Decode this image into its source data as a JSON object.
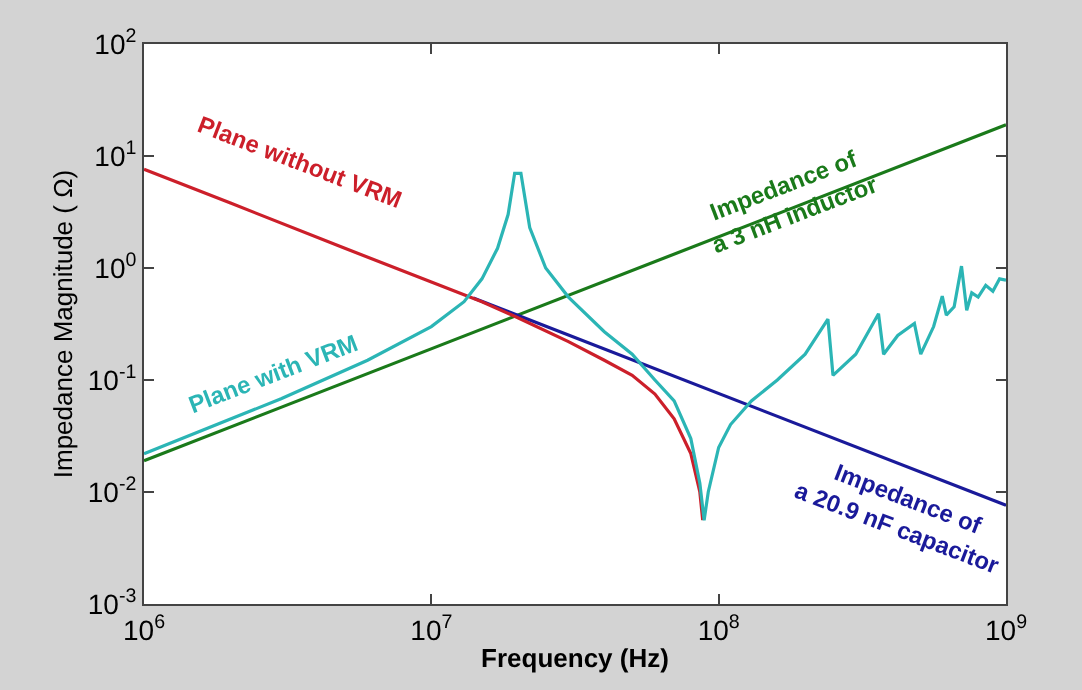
{
  "chart_data": {
    "type": "line",
    "xlabel": "Frequency (Hz)",
    "ylabel": "Impedance Magnitude ( Ω)",
    "log": "xy",
    "legend": false,
    "line_style": "solid",
    "marker": "none",
    "xlim": [
      1000000,
      1000000000
    ],
    "ylim": [
      0.001,
      100
    ],
    "xticks": [
      {
        "value": 1000000,
        "label": "10$^{6}$"
      },
      {
        "value": 10000000,
        "label": "10$^{7}$"
      },
      {
        "value": 100000000,
        "label": "10$^{8}$"
      },
      {
        "value": 1000000000,
        "label": "10$^{9}$"
      }
    ],
    "yticks": [
      {
        "value": 0.001,
        "label": "10$^{-3}$"
      },
      {
        "value": 0.01,
        "label": "10$^{-2}$"
      },
      {
        "value": 0.1,
        "label": "10$^{-1}$"
      },
      {
        "value": 1,
        "label": "10$^{0}$"
      },
      {
        "value": 10,
        "label": "10$^{1}$"
      },
      {
        "value": 100,
        "label": "10$^{2}$"
      }
    ],
    "series": [
      {
        "name": "Impedance of\na 3 nH inductor",
        "color": "#1a7a1a",
        "x": [
          1000000,
          1000000000
        ],
        "values": [
          0.019,
          19
        ]
      },
      {
        "name": "Impedance of\na 20.9 nF capacitor",
        "color": "#1a1a9a",
        "x": [
          14000000,
          1000000000
        ],
        "values": [
          0.54,
          0.0076
        ]
      },
      {
        "name": "Plane without VRM",
        "color": "#cc1f2a",
        "x": [
          1000000,
          2000000,
          5000000,
          10000000,
          15000000,
          20000000,
          30000000,
          40000000,
          50000000,
          60000000,
          70000000,
          80000000,
          86000000,
          88000000
        ],
        "values": [
          7.6,
          3.8,
          1.5,
          0.75,
          0.5,
          0.36,
          0.22,
          0.15,
          0.11,
          0.075,
          0.045,
          0.022,
          0.01,
          0.0056
        ]
      },
      {
        "name": "Plane with VRM",
        "color": "#2bb5b5",
        "x": [
          1000000,
          3000000,
          6000000,
          10000000,
          13000000,
          15000000,
          17000000,
          18500000,
          19500000,
          20500000,
          22000000,
          25000000,
          30000000,
          40000000,
          50000000,
          60000000,
          70000000,
          80000000,
          86000000,
          89000000,
          92000000,
          100000000,
          110000000,
          130000000,
          160000000,
          200000000,
          240000000,
          250000000,
          300000000,
          360000000,
          375000000,
          420000000,
          480000000,
          505000000,
          560000000,
          600000000,
          620000000,
          660000000,
          700000000,
          730000000,
          760000000,
          800000000,
          850000000,
          900000000,
          950000000,
          1000000000
        ],
        "values": [
          0.022,
          0.068,
          0.15,
          0.3,
          0.5,
          0.8,
          1.5,
          3,
          7,
          7,
          2.3,
          1,
          0.55,
          0.27,
          0.17,
          0.1,
          0.065,
          0.03,
          0.012,
          0.0056,
          0.01,
          0.025,
          0.04,
          0.065,
          0.1,
          0.17,
          0.35,
          0.11,
          0.17,
          0.39,
          0.17,
          0.25,
          0.32,
          0.17,
          0.3,
          0.56,
          0.38,
          0.45,
          1.04,
          0.42,
          0.6,
          0.55,
          0.7,
          0.62,
          0.8,
          0.78
        ]
      }
    ]
  }
}
